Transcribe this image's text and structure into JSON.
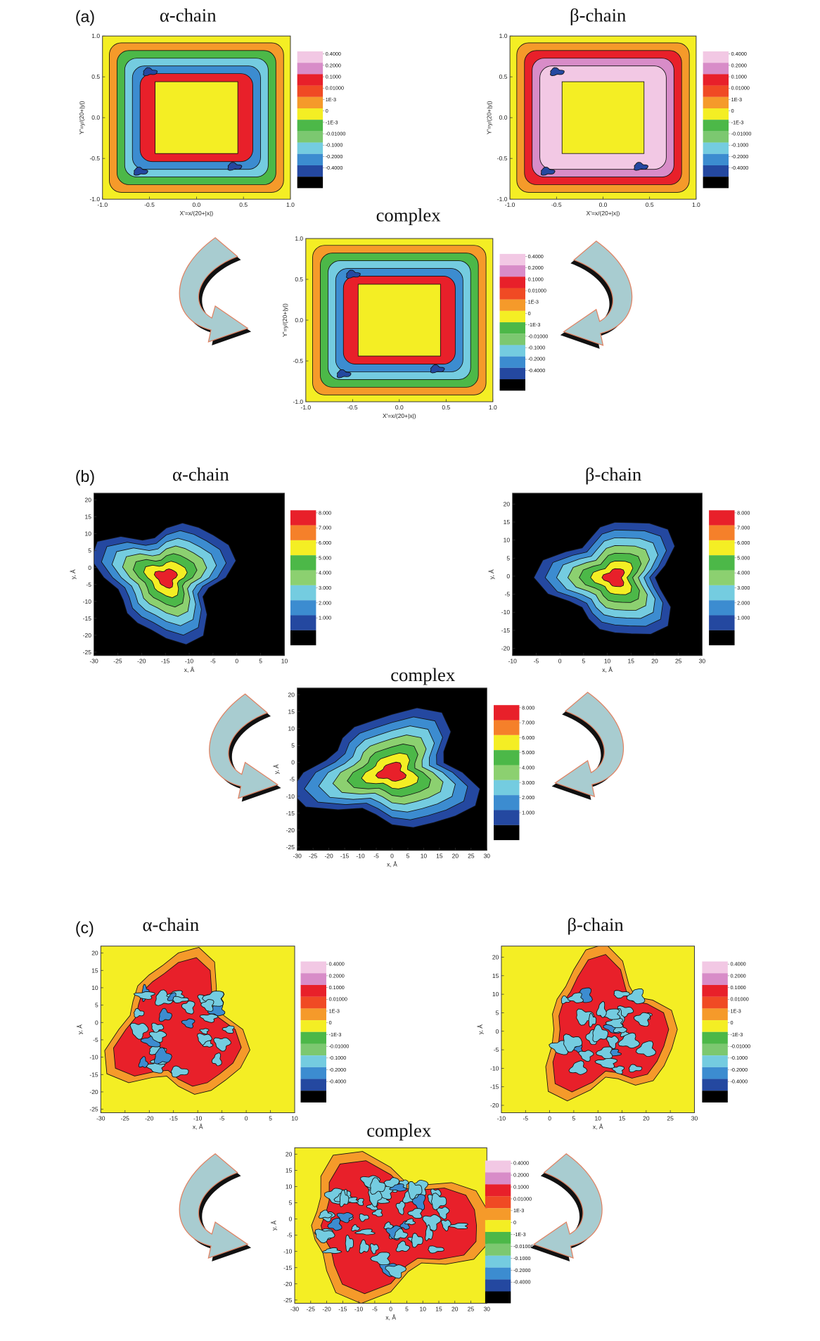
{
  "panel_labels": [
    "(a)",
    "(b)",
    "(c)"
  ],
  "chart_data": [
    {
      "type": "contour",
      "title": "α-chain",
      "xlabel": "X'=x/(20+|x|)",
      "ylabel": "Y'=y/(20+|y|)",
      "xlim": [
        -1,
        1
      ],
      "ylim": [
        -1,
        1
      ],
      "xticks": [
        {
          "value": -1,
          "label": "-1.0"
        },
        -0.5,
        {
          "value": 0,
          "label": "0.0"
        },
        0.5,
        {
          "value": 1,
          "label": "1.0"
        }
      ],
      "yticks": [
        {
          "value": -1,
          "label": "-1.0"
        },
        -0.5,
        {
          "value": 0,
          "label": "0.0"
        },
        0.5,
        {
          "value": 1,
          "label": "1.0"
        }
      ],
      "colorbar": {
        "levels": [
          {
            "value": 0.4,
            "label": "0.4000"
          },
          {
            "value": 0.2,
            "label": "0.2000"
          },
          {
            "value": 0.1,
            "label": "0.1000"
          },
          {
            "value": 0.01,
            "label": "0.01000"
          },
          {
            "value": 0.001,
            "label": "1E-3"
          },
          0,
          {
            "value": -0.001,
            "label": "-1E-3"
          },
          {
            "value": -0.01,
            "label": "-0.01000"
          },
          {
            "value": -0.1,
            "label": "-0.1000"
          },
          {
            "value": -0.2,
            "label": "-0.2000"
          },
          {
            "value": -0.4,
            "label": "-0.4000"
          }
        ],
        "colors": [
          "#f2c8e4",
          "#d88cc8",
          "#e8202a",
          "#f04a24",
          "#f59a2a",
          "#f4ee24",
          "#4cb848",
          "#7cc870",
          "#74cce0",
          "#3c8cd0",
          "#2448a0",
          "#000000"
        ]
      }
    },
    {
      "type": "contour",
      "title": "β-chain",
      "xlabel": "X'=x/(20+|x|)",
      "ylabel": "Y'=y/(20+|y|)",
      "xlim": [
        -1,
        1
      ],
      "ylim": [
        -1,
        1
      ],
      "xticks": [
        {
          "value": -1,
          "label": "-1.0"
        },
        -0.5,
        {
          "value": 0,
          "label": "0.0"
        },
        0.5,
        {
          "value": 1,
          "label": "1.0"
        }
      ],
      "yticks": [
        {
          "value": -1,
          "label": "-1.0"
        },
        -0.5,
        {
          "value": 0,
          "label": "0.0"
        },
        0.5,
        {
          "value": 1,
          "label": "1.0"
        }
      ],
      "colorbar": {
        "levels": [
          {
            "value": 0.4,
            "label": "0.4000"
          },
          {
            "value": 0.2,
            "label": "0.2000"
          },
          {
            "value": 0.1,
            "label": "0.1000"
          },
          {
            "value": 0.01,
            "label": "0.01000"
          },
          {
            "value": 0.001,
            "label": "1E-3"
          },
          0,
          {
            "value": -0.001,
            "label": "-1E-3"
          },
          {
            "value": -0.01,
            "label": "-0.01000"
          },
          {
            "value": -0.1,
            "label": "-0.1000"
          },
          {
            "value": -0.2,
            "label": "-0.2000"
          },
          {
            "value": -0.4,
            "label": "-0.4000"
          }
        ],
        "colors": [
          "#f2c8e4",
          "#d88cc8",
          "#e8202a",
          "#f04a24",
          "#f59a2a",
          "#f4ee24",
          "#4cb848",
          "#7cc870",
          "#74cce0",
          "#3c8cd0",
          "#2448a0",
          "#000000"
        ]
      }
    },
    {
      "type": "contour",
      "title": "complex",
      "xlabel": "X'=x/(20+|x|)",
      "ylabel": "Y'=y/(20+|y|)",
      "xlim": [
        -1,
        1
      ],
      "ylim": [
        -1,
        1
      ],
      "xticks": [
        {
          "value": -1,
          "label": "-1.0"
        },
        -0.5,
        {
          "value": 0,
          "label": "0.0"
        },
        0.5,
        {
          "value": 1,
          "label": "1.0"
        }
      ],
      "yticks": [
        {
          "value": -1,
          "label": "-1.0"
        },
        -0.5,
        {
          "value": 0,
          "label": "0.0"
        },
        0.5,
        {
          "value": 1,
          "label": "1.0"
        }
      ],
      "colorbar": {
        "levels": [
          {
            "value": 0.4,
            "label": "0.4000"
          },
          {
            "value": 0.2,
            "label": "0.2000"
          },
          {
            "value": 0.1,
            "label": "0.1000"
          },
          {
            "value": 0.01,
            "label": "0.01000"
          },
          {
            "value": 0.001,
            "label": "1E-3"
          },
          0,
          {
            "value": -0.001,
            "label": "-1E-3"
          },
          {
            "value": -0.01,
            "label": "-0.01000"
          },
          {
            "value": -0.1,
            "label": "-0.1000"
          },
          {
            "value": -0.2,
            "label": "-0.2000"
          },
          {
            "value": -0.4,
            "label": "-0.4000"
          }
        ],
        "colors": [
          "#f2c8e4",
          "#d88cc8",
          "#e8202a",
          "#f04a24",
          "#f59a2a",
          "#f4ee24",
          "#4cb848",
          "#7cc870",
          "#74cce0",
          "#3c8cd0",
          "#2448a0",
          "#000000"
        ]
      }
    },
    {
      "type": "contour",
      "title": "α-chain",
      "xlabel": "x, Å",
      "ylabel": "y, Å",
      "xlim": [
        -30,
        10
      ],
      "ylim": [
        -26,
        22
      ],
      "xticks": [
        -30,
        -25,
        -20,
        -15,
        -10,
        -5,
        0,
        5,
        10
      ],
      "yticks": [
        -25,
        -20,
        -15,
        -10,
        -5,
        0,
        5,
        10,
        15,
        20
      ],
      "colorbar": {
        "levels": [
          {
            "value": 8,
            "label": "8.000"
          },
          {
            "value": 7,
            "label": "7.000"
          },
          {
            "value": 6,
            "label": "6.000"
          },
          {
            "value": 5,
            "label": "5.000"
          },
          {
            "value": 4,
            "label": "4.000"
          },
          {
            "value": 3,
            "label": "3.000"
          },
          {
            "value": 2,
            "label": "2.000"
          },
          {
            "value": 1,
            "label": "1.000"
          }
        ],
        "colors": [
          "#e8202a",
          "#f5802a",
          "#f4ee24",
          "#4cb848",
          "#8cd070",
          "#74cce0",
          "#3c8cd0",
          "#2448a0",
          "#000000"
        ]
      }
    },
    {
      "type": "contour",
      "title": "β-chain",
      "xlabel": "x, Å",
      "ylabel": "y, Å",
      "xlim": [
        -10,
        30
      ],
      "ylim": [
        -22,
        23
      ],
      "xticks": [
        -10,
        -5,
        0,
        5,
        10,
        15,
        20,
        25,
        30
      ],
      "yticks": [
        -20,
        -15,
        -10,
        -5,
        0,
        5,
        10,
        15,
        20
      ],
      "colorbar": {
        "levels": [
          {
            "value": 8,
            "label": "8.000"
          },
          {
            "value": 7,
            "label": "7.000"
          },
          {
            "value": 6,
            "label": "6.000"
          },
          {
            "value": 5,
            "label": "5.000"
          },
          {
            "value": 4,
            "label": "4.000"
          },
          {
            "value": 3,
            "label": "3.000"
          },
          {
            "value": 2,
            "label": "2.000"
          },
          {
            "value": 1,
            "label": "1.000"
          }
        ],
        "colors": [
          "#e8202a",
          "#f5802a",
          "#f4ee24",
          "#4cb848",
          "#8cd070",
          "#74cce0",
          "#3c8cd0",
          "#2448a0",
          "#000000"
        ]
      }
    },
    {
      "type": "contour",
      "title": "complex",
      "xlabel": "x, Å",
      "ylabel": "y, Å",
      "xlim": [
        -30,
        30
      ],
      "ylim": [
        -26,
        22
      ],
      "xticks": [
        -30,
        -25,
        -20,
        -15,
        -10,
        -5,
        0,
        5,
        10,
        15,
        20,
        25,
        30
      ],
      "yticks": [
        -25,
        -20,
        -15,
        -10,
        -5,
        0,
        5,
        10,
        15,
        20
      ],
      "colorbar": {
        "levels": [
          {
            "value": 8,
            "label": "8.000"
          },
          {
            "value": 7,
            "label": "7.000"
          },
          {
            "value": 6,
            "label": "6.000"
          },
          {
            "value": 5,
            "label": "5.000"
          },
          {
            "value": 4,
            "label": "4.000"
          },
          {
            "value": 3,
            "label": "3.000"
          },
          {
            "value": 2,
            "label": "2.000"
          },
          {
            "value": 1,
            "label": "1.000"
          }
        ],
        "colors": [
          "#e8202a",
          "#f5802a",
          "#f4ee24",
          "#4cb848",
          "#8cd070",
          "#74cce0",
          "#3c8cd0",
          "#2448a0",
          "#000000"
        ]
      }
    },
    {
      "type": "contour",
      "title": "α-chain",
      "xlabel": "x, Å",
      "ylabel": "y, Å",
      "xlim": [
        -30,
        10
      ],
      "ylim": [
        -26,
        22
      ],
      "xticks": [
        -30,
        -25,
        -20,
        -15,
        -10,
        -5,
        0,
        5,
        10
      ],
      "yticks": [
        -25,
        -20,
        -15,
        -10,
        -5,
        0,
        5,
        10,
        15,
        20
      ],
      "colorbar": {
        "levels": [
          {
            "value": 0.4,
            "label": "0.4000"
          },
          {
            "value": 0.2,
            "label": "0.2000"
          },
          {
            "value": 0.1,
            "label": "0.1000"
          },
          {
            "value": 0.01,
            "label": "0.01000"
          },
          {
            "value": 0.001,
            "label": "1E-3"
          },
          0,
          {
            "value": -0.001,
            "label": "-1E-3"
          },
          {
            "value": -0.01,
            "label": "-0.01000"
          },
          {
            "value": -0.1,
            "label": "-0.1000"
          },
          {
            "value": -0.2,
            "label": "-0.2000"
          },
          {
            "value": -0.4,
            "label": "-0.4000"
          }
        ],
        "colors": [
          "#f2c8e4",
          "#d88cc8",
          "#e8202a",
          "#f04a24",
          "#f59a2a",
          "#f4ee24",
          "#4cb848",
          "#7cc870",
          "#74cce0",
          "#3c8cd0",
          "#2448a0",
          "#000000"
        ]
      }
    },
    {
      "type": "contour",
      "title": "β-chain",
      "xlabel": "x, Å",
      "ylabel": "y, Å",
      "xlim": [
        -10,
        30
      ],
      "ylim": [
        -22,
        23
      ],
      "xticks": [
        -10,
        -5,
        0,
        5,
        10,
        15,
        20,
        25,
        30
      ],
      "yticks": [
        -20,
        -15,
        -10,
        -5,
        0,
        5,
        10,
        15,
        20
      ],
      "colorbar": {
        "levels": [
          {
            "value": 0.4,
            "label": "0.4000"
          },
          {
            "value": 0.2,
            "label": "0.2000"
          },
          {
            "value": 0.1,
            "label": "0.1000"
          },
          {
            "value": 0.01,
            "label": "0.01000"
          },
          {
            "value": 0.001,
            "label": "1E-3"
          },
          0,
          {
            "value": -0.001,
            "label": "-1E-3"
          },
          {
            "value": -0.01,
            "label": "-0.01000"
          },
          {
            "value": -0.1,
            "label": "-0.1000"
          },
          {
            "value": -0.2,
            "label": "-0.2000"
          },
          {
            "value": -0.4,
            "label": "-0.4000"
          }
        ],
        "colors": [
          "#f2c8e4",
          "#d88cc8",
          "#e8202a",
          "#f04a24",
          "#f59a2a",
          "#f4ee24",
          "#4cb848",
          "#7cc870",
          "#74cce0",
          "#3c8cd0",
          "#2448a0",
          "#000000"
        ]
      }
    },
    {
      "type": "contour",
      "title": "complex",
      "xlabel": "x, Å",
      "ylabel": "y, Å",
      "xlim": [
        -30,
        30
      ],
      "ylim": [
        -26,
        22
      ],
      "xticks": [
        -30,
        -25,
        -20,
        -15,
        -10,
        -5,
        0,
        5,
        10,
        15,
        20,
        25,
        30
      ],
      "yticks": [
        -25,
        -20,
        -15,
        -10,
        -5,
        0,
        5,
        10,
        15,
        20
      ],
      "colorbar": {
        "levels": [
          {
            "value": 0.4,
            "label": "0.4000"
          },
          {
            "value": 0.2,
            "label": "0.2000"
          },
          {
            "value": 0.1,
            "label": "0.1000"
          },
          {
            "value": 0.01,
            "label": "0.01000"
          },
          {
            "value": 0.001,
            "label": "1E-3"
          },
          0,
          {
            "value": -0.001,
            "label": "-1E-3"
          },
          {
            "value": -0.01,
            "label": "-0.01000"
          },
          {
            "value": -0.1,
            "label": "-0.1000"
          },
          {
            "value": -0.2,
            "label": "-0.2000"
          },
          {
            "value": -0.4,
            "label": "-0.4000"
          }
        ],
        "colors": [
          "#f2c8e4",
          "#d88cc8",
          "#e8202a",
          "#f04a24",
          "#f59a2a",
          "#f4ee24",
          "#4cb848",
          "#7cc870",
          "#74cce0",
          "#3c8cd0",
          "#2448a0",
          "#000000"
        ]
      }
    }
  ]
}
